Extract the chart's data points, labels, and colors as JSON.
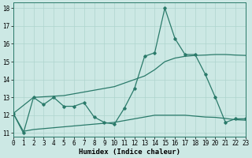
{
  "line1_x": [
    0,
    1,
    2,
    3,
    4,
    5,
    6,
    7,
    8,
    9,
    10,
    11,
    12,
    13,
    14,
    15,
    16,
    17,
    18,
    19,
    20,
    21,
    22,
    23
  ],
  "line1_y": [
    12.1,
    11.0,
    13.0,
    12.6,
    13.0,
    12.5,
    12.5,
    12.7,
    11.9,
    11.6,
    11.5,
    12.4,
    13.5,
    15.3,
    15.5,
    18.0,
    16.3,
    15.4,
    15.4,
    14.3,
    13.0,
    11.6,
    11.8,
    11.8
  ],
  "line2_x": [
    0,
    2,
    5,
    10,
    13,
    14,
    15,
    16,
    17,
    18,
    19,
    20,
    21,
    22,
    23
  ],
  "line2_y": [
    12.1,
    13.0,
    13.1,
    13.6,
    14.2,
    14.55,
    15.0,
    15.2,
    15.3,
    15.35,
    15.37,
    15.4,
    15.4,
    15.37,
    15.35
  ],
  "line3_x": [
    0,
    1,
    2,
    5,
    10,
    14,
    15,
    16,
    17,
    18,
    19,
    20,
    21,
    22,
    23
  ],
  "line3_y": [
    12.1,
    11.1,
    11.2,
    11.35,
    11.6,
    12.0,
    12.0,
    12.0,
    12.0,
    11.95,
    11.9,
    11.88,
    11.82,
    11.75,
    11.72
  ],
  "line_color": "#2a7a6a",
  "bg_color": "#cce8e4",
  "grid_color": "#aed4ce",
  "xlabel": "Humidex (Indice chaleur)",
  "xlim": [
    0,
    23
  ],
  "ylim": [
    10.8,
    18.3
  ],
  "yticks": [
    11,
    12,
    13,
    14,
    15,
    16,
    17,
    18
  ],
  "xticks": [
    0,
    1,
    2,
    3,
    4,
    5,
    6,
    7,
    8,
    9,
    10,
    11,
    12,
    13,
    14,
    15,
    16,
    17,
    18,
    19,
    20,
    21,
    22,
    23
  ],
  "tick_fontsize": 5.5,
  "xlabel_fontsize": 6.5
}
